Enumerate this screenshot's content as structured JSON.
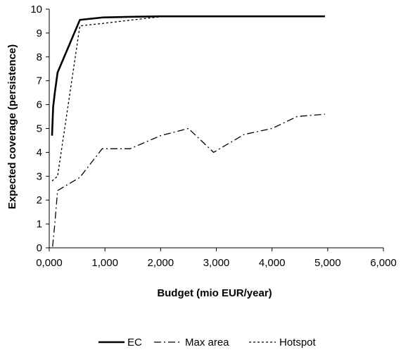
{
  "chart_data": {
    "type": "line",
    "title": "",
    "xlabel": "Budget (mio EUR/year)",
    "ylabel": "Expected coverage (persistence)",
    "xlim": [
      0,
      6000
    ],
    "ylim": [
      0,
      10
    ],
    "x_ticks": [
      0,
      1000,
      2000,
      3000,
      4000,
      5000,
      6000
    ],
    "x_tick_labels": [
      "0,000",
      "1,000",
      "2,000",
      "3,000",
      "4,000",
      "5,000",
      "6,000"
    ],
    "y_ticks": [
      0,
      1,
      2,
      3,
      4,
      5,
      6,
      7,
      8,
      9,
      10
    ],
    "y_tick_labels": [
      "0",
      "1",
      "2",
      "3",
      "4",
      "5",
      "6",
      "7",
      "8",
      "9",
      "10"
    ],
    "grid": false,
    "legend_position": "bottom",
    "series": [
      {
        "name": "EC",
        "style": "solid",
        "x": [
          50,
          70,
          100,
          150,
          550,
          950,
          1500,
          2000,
          3000,
          4000,
          4950
        ],
        "y": [
          4.7,
          5.9,
          6.5,
          7.35,
          9.55,
          9.65,
          9.68,
          9.7,
          9.7,
          9.7,
          9.7
        ]
      },
      {
        "name": "Max area",
        "style": "dashdot",
        "x": [
          60,
          100,
          150,
          550,
          950,
          1450,
          2000,
          2500,
          2950,
          3500,
          4000,
          4450,
          4950
        ],
        "y": [
          0.05,
          1.0,
          2.4,
          2.95,
          4.15,
          4.15,
          4.7,
          5.0,
          4.0,
          4.75,
          5.0,
          5.5,
          5.6
        ]
      },
      {
        "name": "Hotspot",
        "style": "dotted",
        "x": [
          50,
          150,
          550,
          950,
          1500,
          2000,
          3000,
          4000,
          4950
        ],
        "y": [
          2.8,
          3.0,
          9.3,
          9.4,
          9.55,
          9.68,
          9.7,
          9.7,
          9.7
        ]
      }
    ]
  }
}
